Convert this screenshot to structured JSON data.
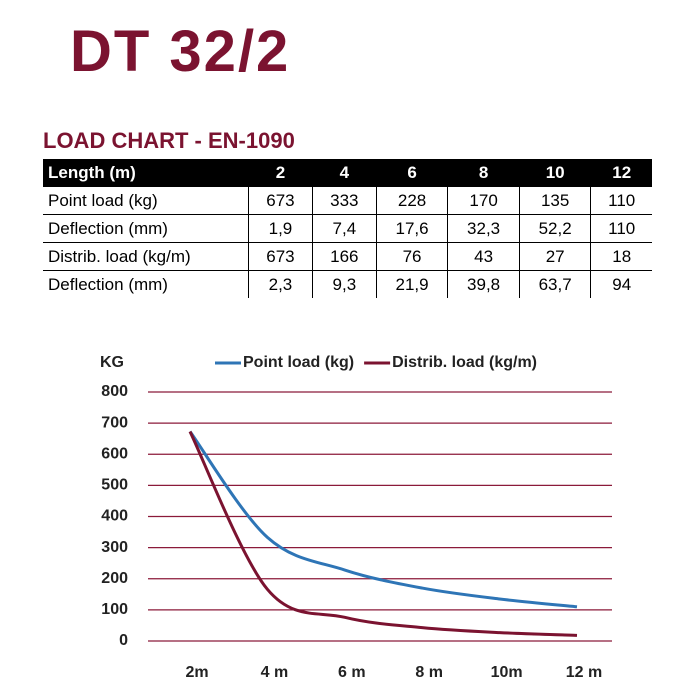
{
  "title": "DT 32/2",
  "table": {
    "title": "LOAD CHART - EN-1090",
    "header": [
      "Length (m)",
      "2",
      "4",
      "6",
      "8",
      "10",
      "12"
    ],
    "rows": [
      [
        "Point load (kg)",
        "673",
        "333",
        "228",
        "170",
        "135",
        "110"
      ],
      [
        "Deflection (mm)",
        "1,9",
        "7,4",
        "17,6",
        "32,3",
        "52,2",
        "110"
      ],
      [
        "Distrib. load (kg/m)",
        "673",
        "166",
        "76",
        "43",
        "27",
        "18"
      ],
      [
        "Deflection (mm)",
        "2,3",
        "9,3",
        "21,9",
        "39,8",
        "63,7",
        "94"
      ]
    ]
  },
  "chart_data": {
    "type": "line",
    "y_label": "KG",
    "categories": [
      "2m",
      "4 m",
      "6 m",
      "8 m",
      "10m",
      "12 m"
    ],
    "series": [
      {
        "name": "Point load (kg)",
        "color": "#2e75b6",
        "values": [
          673,
          333,
          228,
          170,
          135,
          110
        ]
      },
      {
        "name": "Distrib. load (kg/m)",
        "color": "#7b1330",
        "values": [
          673,
          166,
          76,
          43,
          27,
          18
        ]
      }
    ],
    "ylim": [
      0,
      800
    ],
    "yticks": [
      0,
      100,
      200,
      300,
      400,
      500,
      600,
      700,
      800
    ],
    "grid": true,
    "grid_color": "#8b1a3a",
    "legend": "top"
  }
}
